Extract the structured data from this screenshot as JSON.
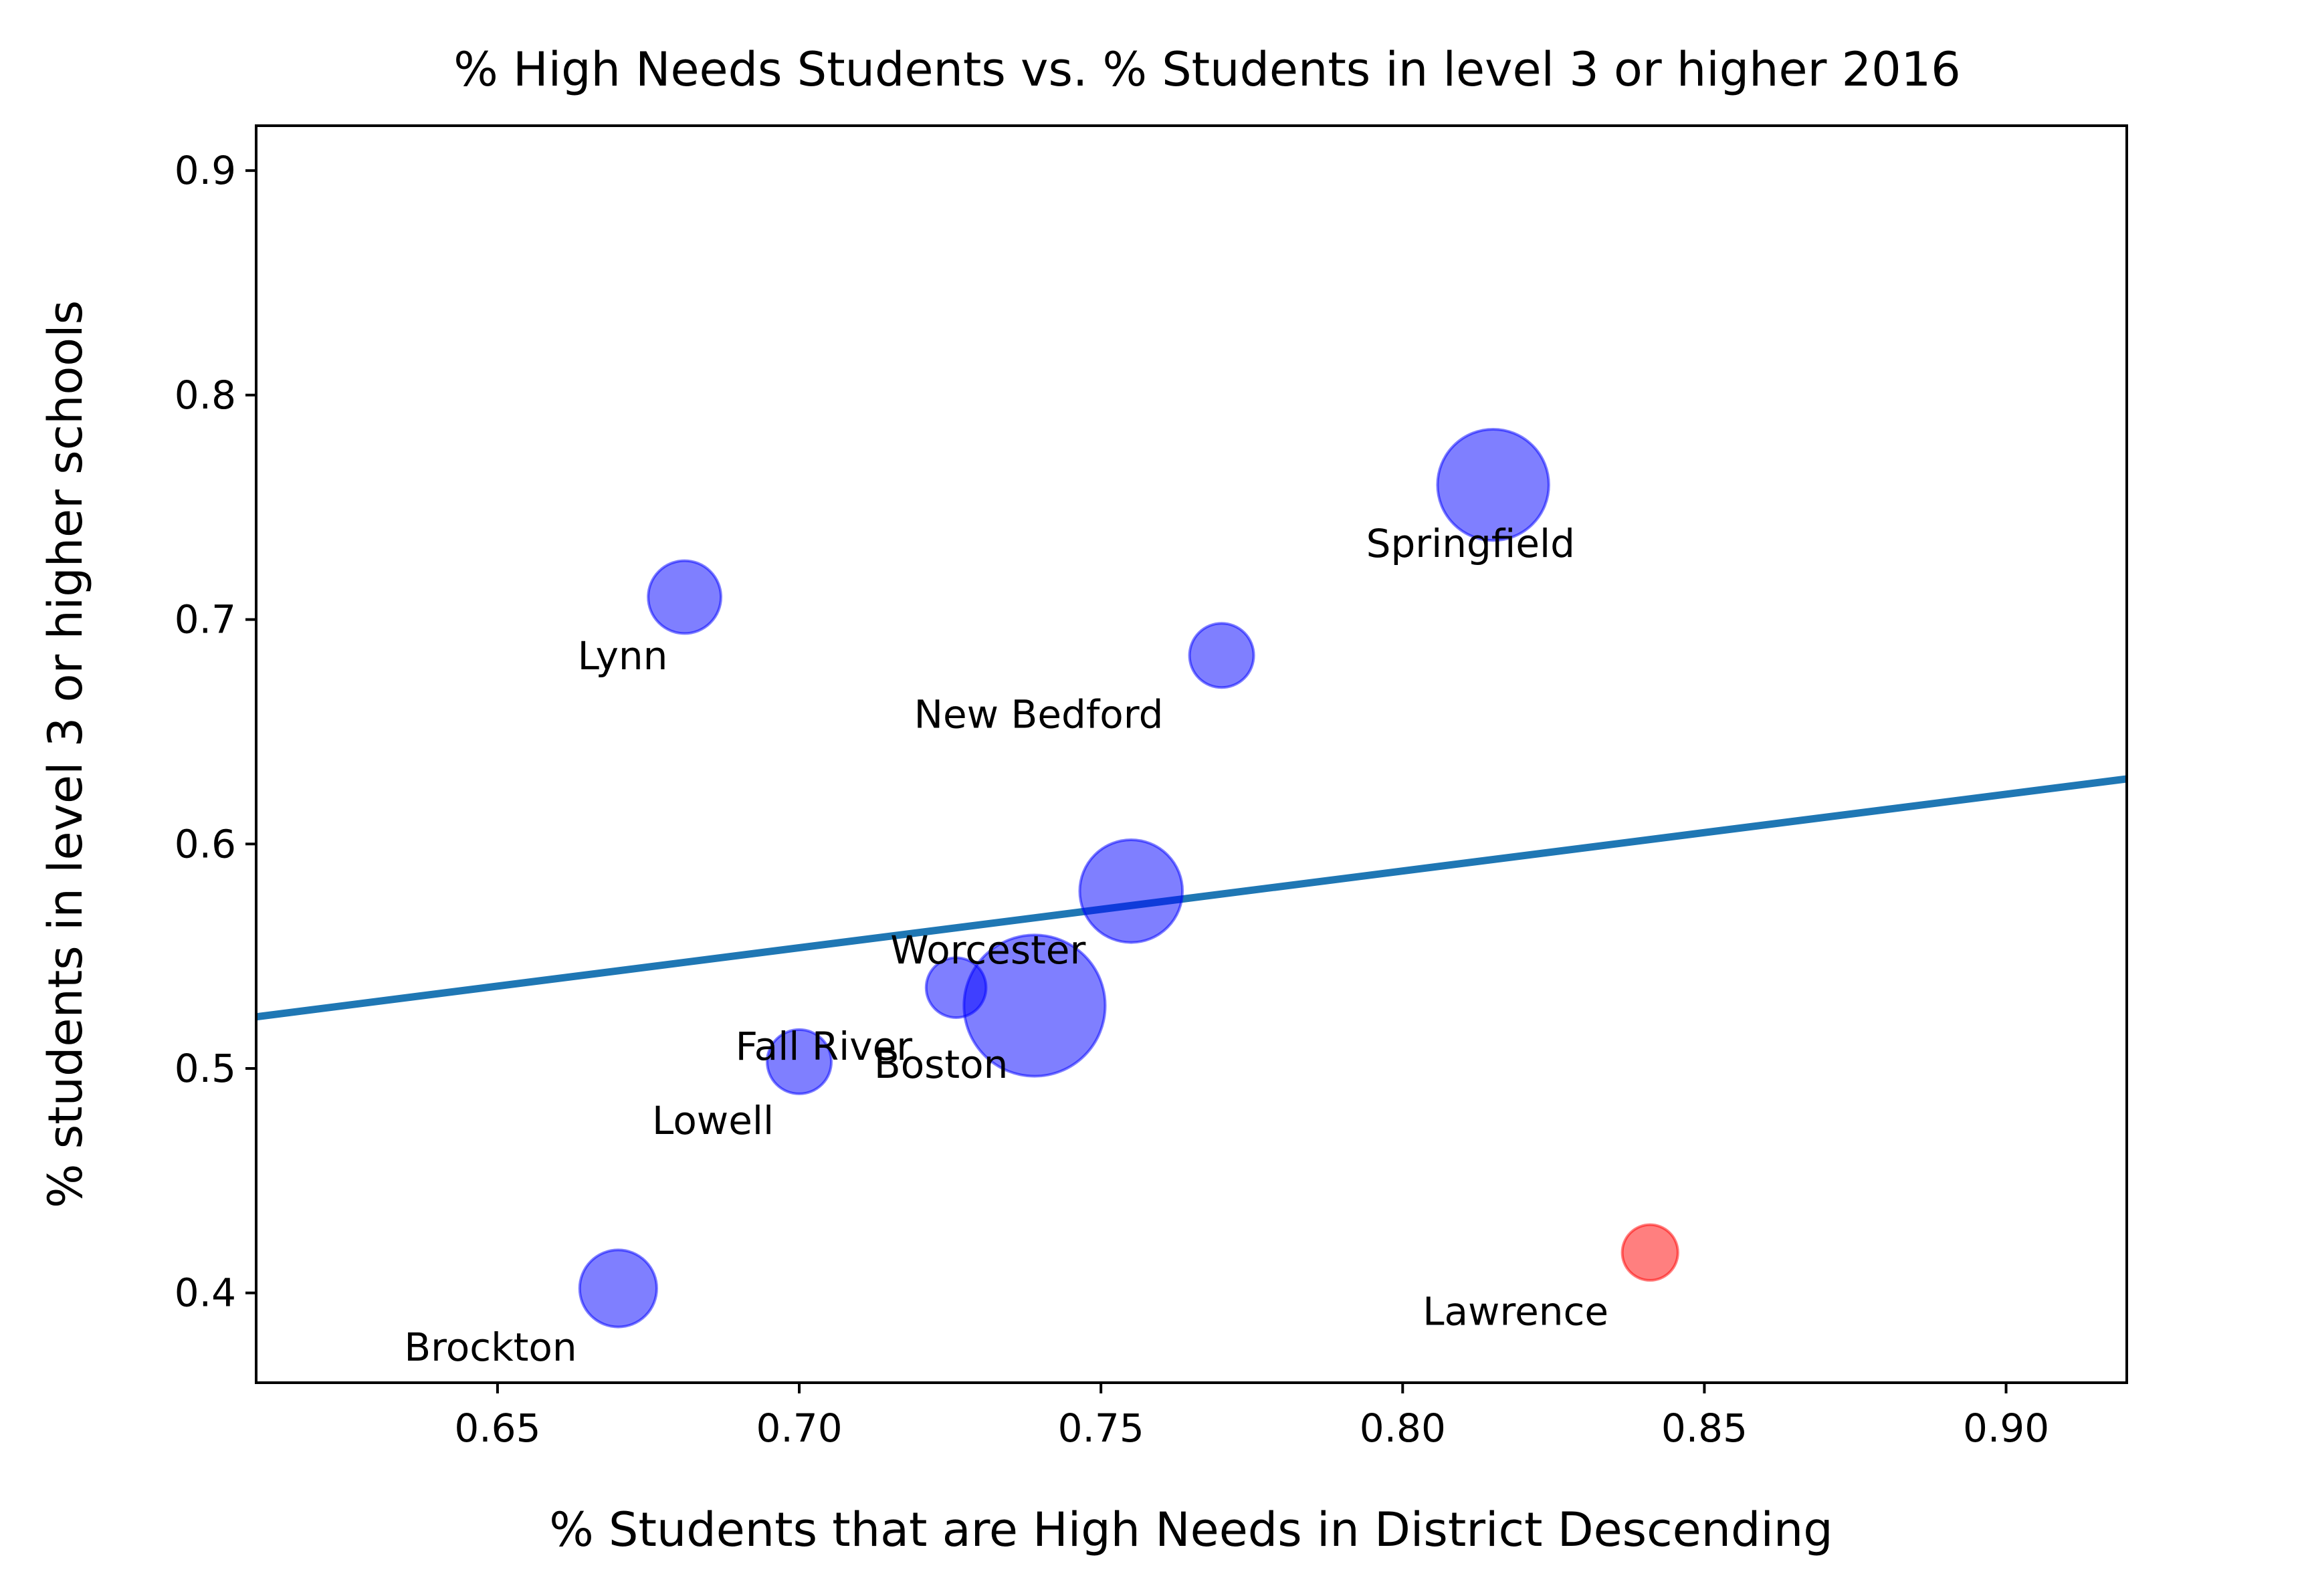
{
  "chart_data": {
    "type": "scatter",
    "title": "% High Needs Students vs. % Students in level 3 or higher 2016",
    "xlabel": "% Students that are High Needs in District Descending",
    "ylabel": "% students in level 3 or higher schools",
    "xlim": [
      0.61,
      0.92
    ],
    "ylim": [
      0.36,
      0.92
    ],
    "x_ticks": [
      "0.65",
      "0.70",
      "0.75",
      "0.80",
      "0.85",
      "0.90"
    ],
    "y_ticks": [
      "0.4",
      "0.5",
      "0.6",
      "0.7",
      "0.8",
      "0.9"
    ],
    "grid": false,
    "colors": {
      "points": "#0000ff",
      "highlight": "#ff0000",
      "regression": "#1f77b4"
    },
    "points": [
      {
        "label": "Springfield",
        "x": 0.815,
        "y": 0.76,
        "size": 2.6,
        "highlight": false
      },
      {
        "label": "Lynn",
        "x": 0.681,
        "y": 0.71,
        "size": 1.7,
        "highlight": false
      },
      {
        "label": "New Bedford",
        "x": 0.77,
        "y": 0.684,
        "size": 1.5,
        "highlight": false
      },
      {
        "label": "Worcester",
        "x": 0.755,
        "y": 0.579,
        "size": 2.4,
        "highlight": false
      },
      {
        "label": "Boston",
        "x": 0.739,
        "y": 0.528,
        "size": 3.3,
        "highlight": false
      },
      {
        "label": "Fall River",
        "x": 0.726,
        "y": 0.536,
        "size": 1.4,
        "highlight": false
      },
      {
        "label": "Lowell",
        "x": 0.7,
        "y": 0.503,
        "size": 1.5,
        "highlight": false
      },
      {
        "label": "Brockton",
        "x": 0.67,
        "y": 0.402,
        "size": 1.8,
        "highlight": false
      },
      {
        "label": "Lawrence",
        "x": 0.841,
        "y": 0.418,
        "size": 1.3,
        "highlight": true
      }
    ],
    "regression_line": {
      "x": [
        0.61,
        0.92
      ],
      "y": [
        0.523,
        0.629
      ]
    }
  }
}
